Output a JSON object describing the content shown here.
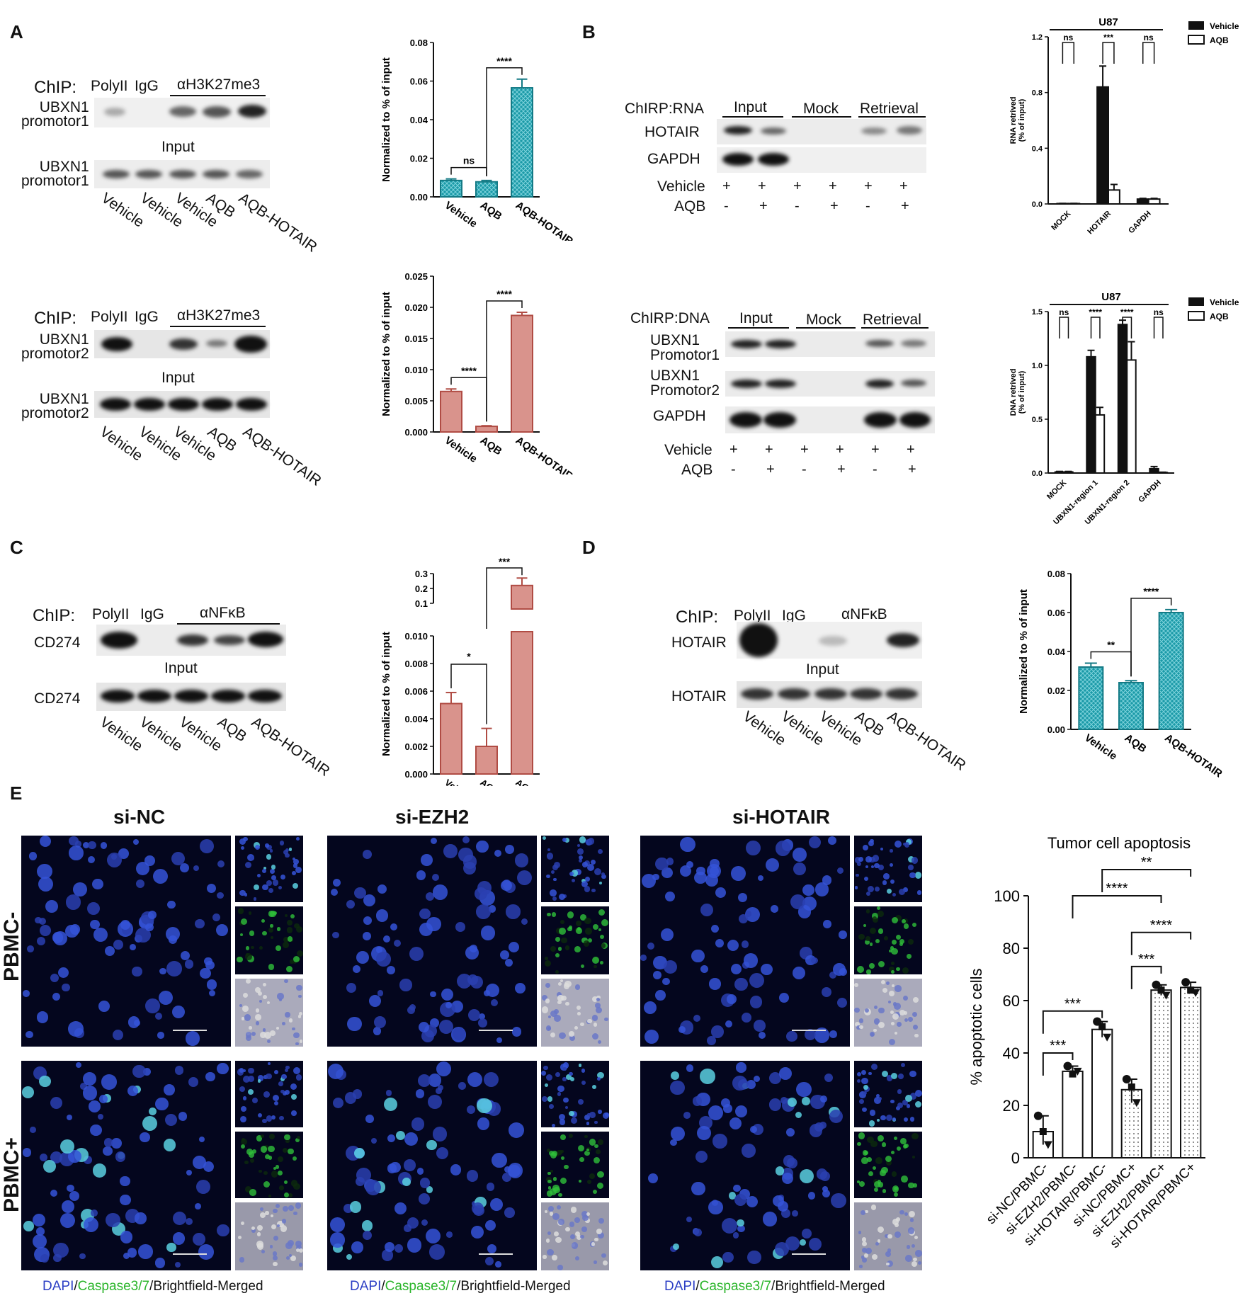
{
  "panels": {
    "A": "A",
    "B": "B",
    "C": "C",
    "D": "D",
    "E": "E"
  },
  "panelA": {
    "top": {
      "chip_label": "ChIP:",
      "polyII": "PolyII",
      "igg": "IgG",
      "antibody": "αH3K27me3",
      "target": "UBXN1\npromotor1",
      "input": "Input"
    },
    "bottom": {
      "chip_label": "ChIP:",
      "polyII": "PolyII",
      "igg": "IgG",
      "antibody": "αH3K27me3",
      "target": "UBXN1\npromotor2",
      "input": "Input"
    },
    "lanes": [
      "Vehicle",
      "Vehicle",
      "Vehicle",
      "AQB",
      "AQB-HOTAIR"
    ]
  },
  "panelB": {
    "rna": {
      "label": "ChIRP:RNA",
      "groups": [
        "Input",
        "Mock",
        "Retrieval"
      ],
      "rows": [
        "HOTAIR",
        "GAPDH"
      ],
      "vehicle_label": "Vehicle",
      "aqb_label": "AQB",
      "vehicle_signs": [
        "+",
        "+",
        "+",
        "+",
        "+",
        "+"
      ],
      "aqb_signs": [
        "-",
        "+",
        "-",
        "+",
        "-",
        "+"
      ]
    },
    "dna": {
      "label": "ChIRP:DNA",
      "groups": [
        "Input",
        "Mock",
        "Retrieval"
      ],
      "rows": [
        "UBXN1\nPromotor1",
        "UBXN1\nPromotor2",
        "GAPDH"
      ],
      "vehicle_label": "Vehicle",
      "aqb_label": "AQB",
      "vehicle_signs": [
        "+",
        "+",
        "+",
        "+",
        "+",
        "+"
      ],
      "aqb_signs": [
        "-",
        "+",
        "-",
        "+",
        "-",
        "+"
      ]
    }
  },
  "panelC": {
    "chip_label": "ChIP:",
    "polyII": "PolyII",
    "igg": "IgG",
    "antibody": "αNFκB",
    "target": "CD274",
    "input": "Input",
    "input_target": "CD274",
    "lanes": [
      "Vehicle",
      "Vehicle",
      "Vehicle",
      "AQB",
      "AQB-HOTAIR"
    ]
  },
  "panelD": {
    "chip_label": "ChIP:",
    "polyII": "PolyII",
    "igg": "IgG",
    "antibody": "αNFκB",
    "target": "HOTAIR",
    "input": "Input",
    "input_target": "HOTAIR",
    "lanes": [
      "Vehicle",
      "Vehicle",
      "Vehicle",
      "AQB",
      "AQB-HOTAIR"
    ]
  },
  "panelE": {
    "columns": [
      "si-NC",
      "si-EZH2",
      "si-HOTAIR"
    ],
    "rows": [
      "PBMC-",
      "PBMC+"
    ],
    "caption": {
      "dapi": "DAPI",
      "sep1": "/",
      "casp": "Caspase3/7",
      "rest": "/Brightfield-Merged"
    }
  },
  "chart_data": [
    {
      "id": "A-top",
      "type": "bar",
      "categories": [
        "Vehicle",
        "AQB",
        "AQB-HOTAIR"
      ],
      "values": [
        0.0085,
        0.0078,
        0.0565
      ],
      "errors": [
        0.0008,
        0.0007,
        0.0045
      ],
      "ylabel": "Normalized to % of input",
      "ylim": [
        0,
        0.08
      ],
      "yticks": [
        "0.00",
        "0.02",
        "0.04",
        "0.06",
        "0.08"
      ],
      "significance": [
        {
          "pair": [
            0,
            1
          ],
          "label": "ns"
        },
        {
          "pair": [
            1,
            2
          ],
          "label": "****"
        }
      ],
      "color": "#1b9aa8"
    },
    {
      "id": "A-bottom",
      "type": "bar",
      "categories": [
        "Vehicle",
        "AQB",
        "AQB-HOTAIR"
      ],
      "values": [
        0.0065,
        0.0009,
        0.0187
      ],
      "errors": [
        0.0004,
        0.0001,
        0.0005
      ],
      "ylabel": "Normalized to % of input",
      "ylim": [
        0,
        0.025
      ],
      "yticks": [
        "0.000",
        "0.005",
        "0.010",
        "0.015",
        "0.020",
        "0.025"
      ],
      "significance": [
        {
          "pair": [
            0,
            1
          ],
          "label": "****"
        },
        {
          "pair": [
            1,
            2
          ],
          "label": "****"
        }
      ],
      "color": "#d9938c"
    },
    {
      "id": "B-rna",
      "type": "bar",
      "title": "U87",
      "categories": [
        "MOCK",
        "HOTAIR",
        "GAPDH"
      ],
      "series": [
        {
          "name": "Vehicle",
          "values": [
            0.003,
            0.84,
            0.035
          ],
          "errors": [
            0.001,
            0.15,
            0.005
          ]
        },
        {
          "name": "AQB",
          "values": [
            0.003,
            0.1,
            0.035
          ],
          "errors": [
            0.001,
            0.04,
            0.005
          ]
        }
      ],
      "ylabel": "RNA retrived\n(% of input)",
      "ylim": [
        0,
        1.2
      ],
      "yticks": [
        "0.0",
        "0.4",
        "0.8",
        "1.2"
      ],
      "significance": [
        "ns",
        "***",
        "ns"
      ]
    },
    {
      "id": "B-dna",
      "type": "bar",
      "title": "U87",
      "categories": [
        "MOCK",
        "UBXN1-region 1",
        "UBXN1-region 2",
        "GAPDH"
      ],
      "series": [
        {
          "name": "Vehicle",
          "values": [
            0.01,
            1.08,
            1.38,
            0.04
          ],
          "errors": [
            0.005,
            0.06,
            0.04,
            0.02
          ]
        },
        {
          "name": "AQB",
          "values": [
            0.01,
            0.54,
            1.05,
            0.005
          ],
          "errors": [
            0.005,
            0.07,
            0.17,
            0.003
          ]
        }
      ],
      "ylabel": "DNA retrived\n(% of input)",
      "ylim": [
        0,
        1.5
      ],
      "yticks": [
        "0.0",
        "0.5",
        "1.0",
        "1.5"
      ],
      "significance": [
        "ns",
        "****",
        "****",
        "ns"
      ]
    },
    {
      "id": "C",
      "type": "bar",
      "categories": [
        "Vehicle",
        "AQB",
        "AQB-HOTAIR"
      ],
      "values": [
        0.0051,
        0.002,
        0.22
      ],
      "errors": [
        0.0008,
        0.0013,
        0.05
      ],
      "ylabel": "Normalized to % of input",
      "yticks_lower": [
        "0.000",
        "0.002",
        "0.004",
        "0.006",
        "0.008",
        "0.010"
      ],
      "yticks_upper": [
        "0.1",
        "0.2",
        "0.3"
      ],
      "axis_break": true,
      "significance": [
        {
          "pair": [
            0,
            1
          ],
          "label": "*"
        },
        {
          "pair": [
            1,
            2
          ],
          "label": "***"
        }
      ],
      "color": "#d9938c"
    },
    {
      "id": "D",
      "type": "bar",
      "categories": [
        "Vehicle",
        "AQB",
        "AQB-HOTAIR"
      ],
      "values": [
        0.032,
        0.024,
        0.06
      ],
      "errors": [
        0.002,
        0.001,
        0.0015
      ],
      "ylabel": "Normalized to % of input",
      "ylim": [
        0,
        0.08
      ],
      "yticks": [
        "0.00",
        "0.02",
        "0.04",
        "0.06",
        "0.08"
      ],
      "significance": [
        {
          "pair": [
            0,
            1
          ],
          "label": "**"
        },
        {
          "pair": [
            1,
            2
          ],
          "label": "****"
        }
      ],
      "color": "#1b9aa8"
    },
    {
      "id": "E",
      "type": "bar",
      "title": "Tumor cell apoptosis",
      "categories": [
        "si-NC/PBMC-",
        "si-EZH2/PBMC-",
        "si-HOTAIR/PBMC-",
        "si-NC/PBMC+",
        "si-EZH2/PBMC+",
        "si-HOTAIR/PBMC+"
      ],
      "values": [
        10,
        33,
        49,
        26,
        64,
        65
      ],
      "points": [
        [
          16,
          10,
          5
        ],
        [
          35,
          32,
          33
        ],
        [
          52,
          50,
          46
        ],
        [
          30,
          27,
          21
        ],
        [
          66,
          64,
          62
        ],
        [
          67,
          64,
          63
        ]
      ],
      "ylabel": "% apoptotic cells",
      "ylim": [
        0,
        100
      ],
      "yticks": [
        "0",
        "20",
        "40",
        "60",
        "80",
        "100"
      ],
      "significance": [
        "***",
        "***",
        "****",
        "**",
        "***",
        "****"
      ]
    }
  ],
  "legend": {
    "vehicle": "Vehicle",
    "aqb": "AQB"
  }
}
